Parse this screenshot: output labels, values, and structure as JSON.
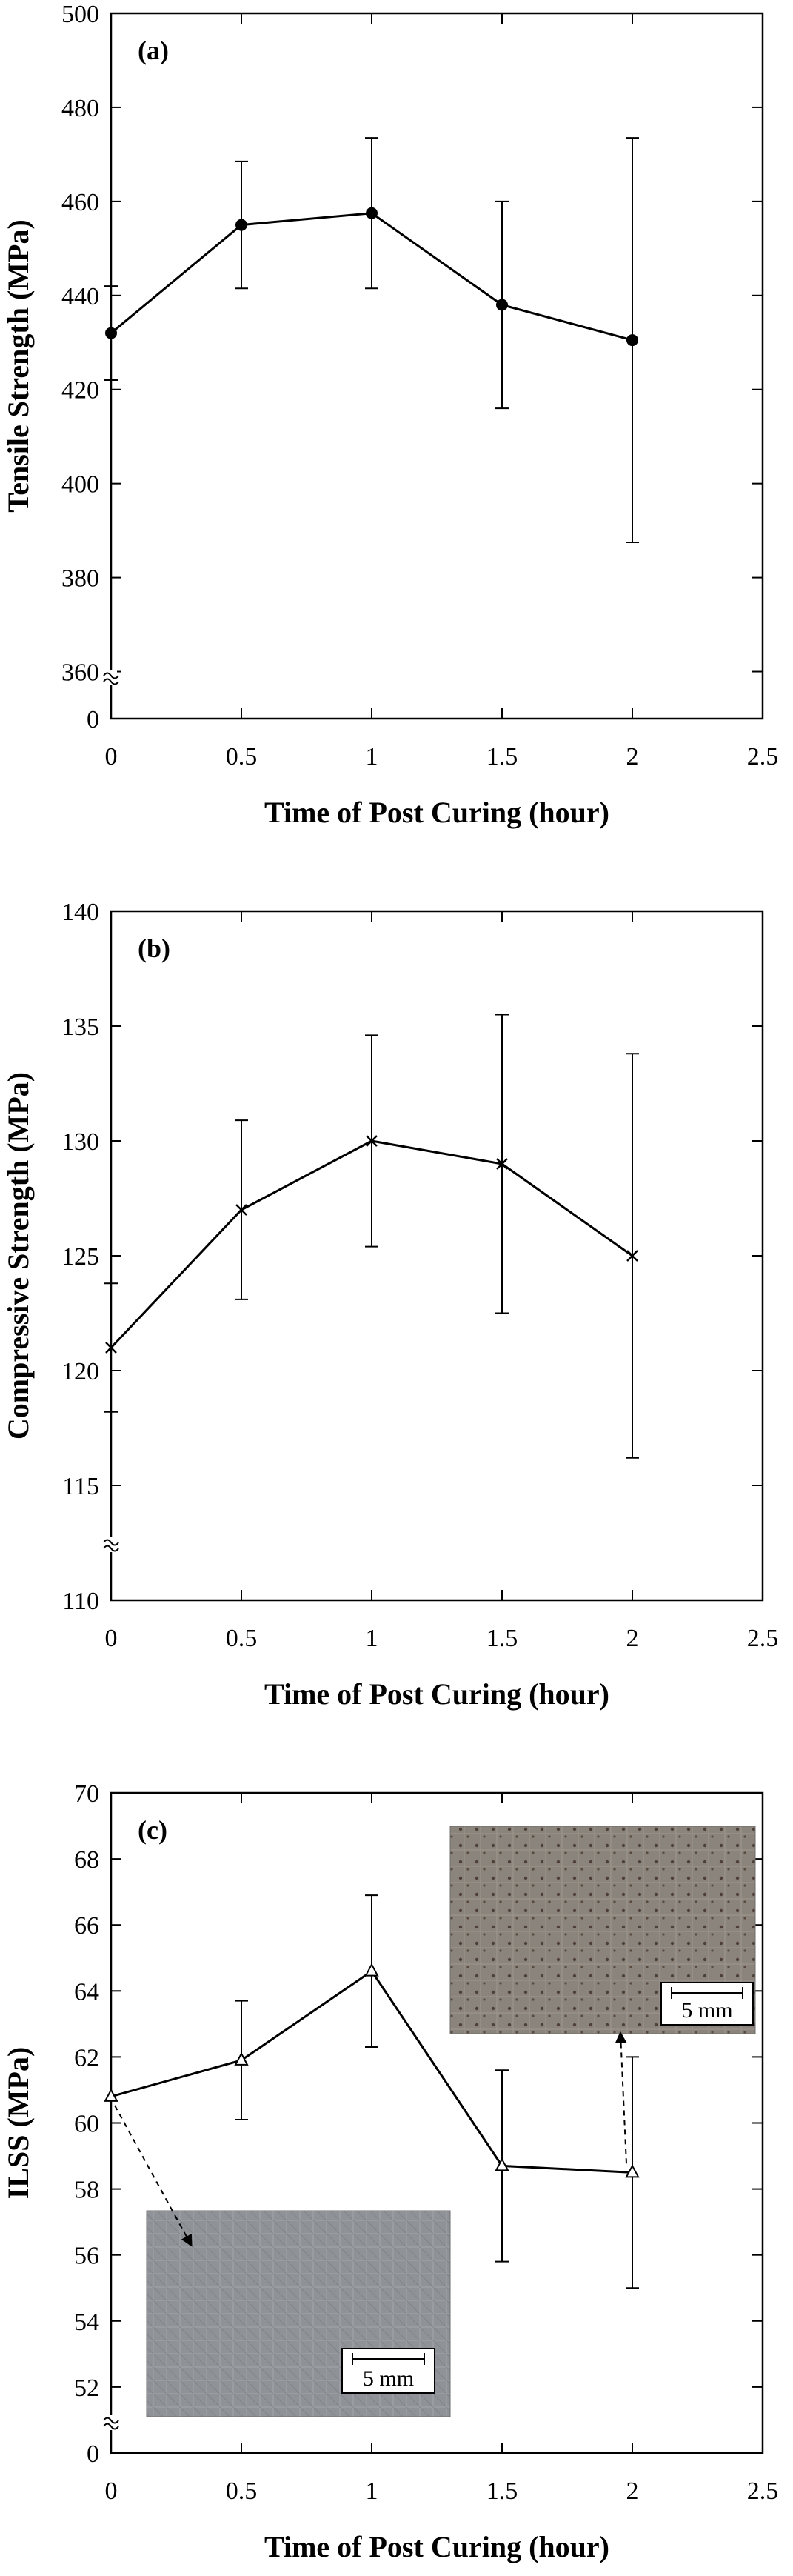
{
  "chart_data": [
    {
      "type": "line",
      "panel_label": "(a)",
      "xlabel": "Time of Post Curing (hour)",
      "ylabel": "Tensile Strength (MPa)",
      "xlim": [
        0,
        2.5
      ],
      "ylim": [
        0,
        500
      ],
      "axis_break": true,
      "x_ticks": [
        "0",
        "0.5",
        "1",
        "1.5",
        "2",
        "2.5"
      ],
      "y_ticks": [
        "0",
        "360",
        "380",
        "400",
        "420",
        "440",
        "460",
        "480",
        "500"
      ],
      "marker": "filled-circle",
      "grid": false,
      "series": [
        {
          "x": [
            0,
            0.5,
            1,
            1.5,
            2
          ],
          "y": [
            432,
            455,
            457.5,
            438,
            430.5
          ],
          "error": [
            10,
            13.5,
            16,
            22,
            43
          ]
        }
      ]
    },
    {
      "type": "line",
      "panel_label": "(b)",
      "xlabel": "Time of Post Curing (hour)",
      "ylabel": "Compressive Strength (MPa)",
      "xlim": [
        0,
        2.5
      ],
      "ylim": [
        110,
        140
      ],
      "axis_break": true,
      "x_ticks": [
        "0",
        "0.5",
        "1",
        "1.5",
        "2",
        "2.5"
      ],
      "y_ticks": [
        "110",
        "115",
        "120",
        "125",
        "130",
        "135",
        "140"
      ],
      "marker": "x",
      "grid": false,
      "series": [
        {
          "x": [
            0,
            0.5,
            1,
            1.5,
            2
          ],
          "y": [
            121,
            127,
            130,
            129,
            125
          ],
          "error": [
            2.8,
            3.9,
            4.6,
            6.5,
            8.8
          ]
        }
      ]
    },
    {
      "type": "line",
      "panel_label": "(c)",
      "xlabel": "Time of Post Curing (hour)",
      "ylabel": "ILSS (MPa)",
      "xlim": [
        0,
        2.5
      ],
      "ylim": [
        50,
        70
      ],
      "axis_break": true,
      "x_ticks": [
        "0",
        "0.5",
        "1",
        "1.5",
        "2",
        "2.5"
      ],
      "y_ticks": [
        "0",
        "52",
        "54",
        "56",
        "58",
        "60",
        "62",
        "64",
        "66",
        "68",
        "70"
      ],
      "marker": "open-triangle",
      "grid": false,
      "series": [
        {
          "x": [
            0,
            0.5,
            1,
            1.5,
            2
          ],
          "y": [
            60.8,
            61.9,
            64.6,
            58.7,
            58.5
          ],
          "error": [
            0,
            1.8,
            2.3,
            2.9,
            3.5
          ]
        }
      ],
      "insets": [
        {
          "name": "micrograph-0h",
          "scale_label": "5 mm",
          "tone": "grey"
        },
        {
          "name": "micrograph-2h",
          "scale_label": "5 mm",
          "tone": "brown"
        }
      ]
    }
  ]
}
